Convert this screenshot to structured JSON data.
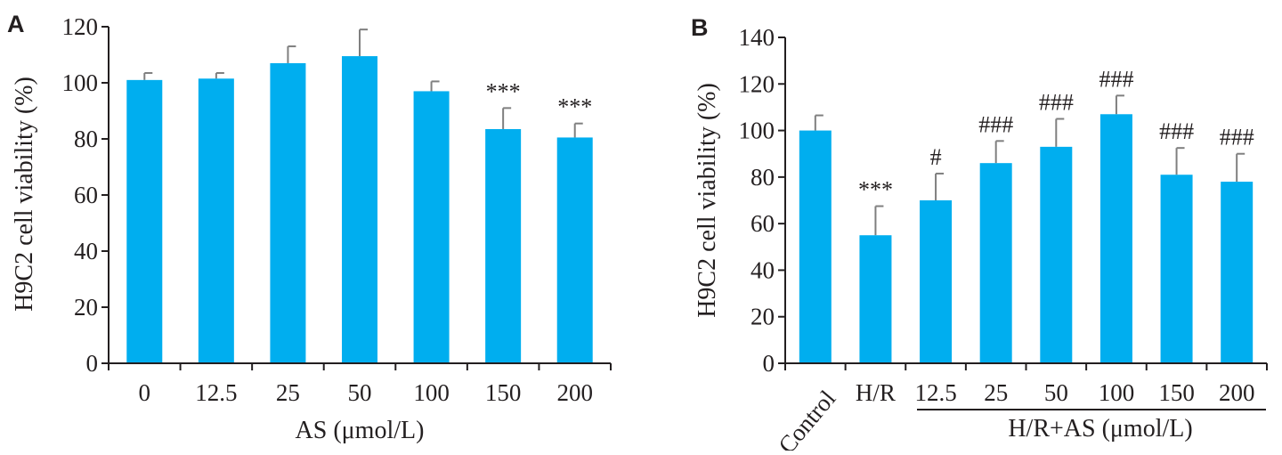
{
  "chart_data": [
    {
      "panel": "A",
      "type": "bar",
      "xlabel": "AS (μmol/L)",
      "ylabel": "H9C2 cell viability (%)",
      "ylim": [
        0,
        120
      ],
      "yticks": [
        0,
        20,
        40,
        60,
        80,
        100,
        120
      ],
      "categories": [
        "0",
        "12.5",
        "25",
        "50",
        "100",
        "150",
        "200"
      ],
      "values": [
        101,
        101.5,
        107,
        109.5,
        97,
        83.5,
        80.5
      ],
      "errors": [
        2.5,
        2,
        6,
        9.5,
        3.5,
        7.5,
        5
      ],
      "annotations": [
        "",
        "",
        "",
        "",
        "",
        "***",
        "***"
      ],
      "bar_color": "#00aeef",
      "error_color": "#7f7f7f",
      "grid": false
    },
    {
      "panel": "B",
      "type": "bar",
      "xlabel": "H/R+AS (μmol/L)",
      "ylabel": "H9C2 cell viability (%)",
      "ylim": [
        0,
        140
      ],
      "yticks": [
        0,
        20,
        40,
        60,
        80,
        100,
        120,
        140
      ],
      "categories": [
        "Control",
        "H/R",
        "12.5",
        "25",
        "50",
        "100",
        "150",
        "200"
      ],
      "values": [
        100,
        55,
        70,
        86,
        93,
        107,
        81,
        78
      ],
      "errors": [
        6.5,
        12.5,
        11.5,
        9.5,
        12,
        8,
        11.5,
        12
      ],
      "annotations": [
        "",
        "***",
        "#",
        "###",
        "###",
        "###",
        "###",
        "###"
      ],
      "bar_color": "#00aeef",
      "error_color": "#7f7f7f",
      "grid": false
    }
  ]
}
